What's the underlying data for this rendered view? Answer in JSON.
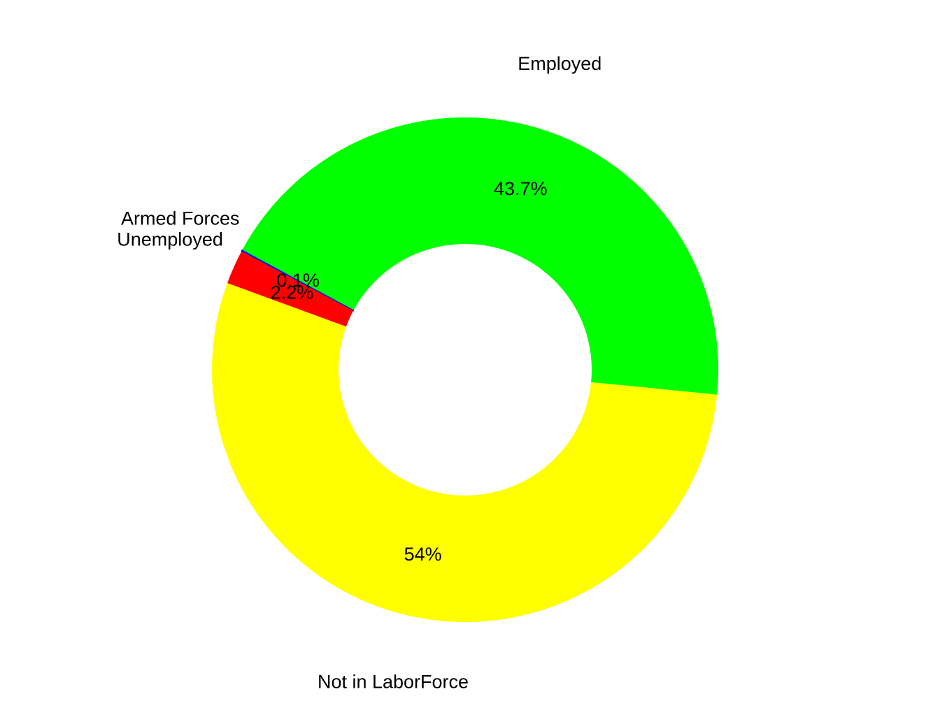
{
  "chart_data": {
    "type": "pie",
    "variant": "donut",
    "categories": [
      "Armed Forces",
      "Employed",
      "Not in LaborForce",
      "Unemployed"
    ],
    "values": [
      0.1,
      43.7,
      54.0,
      2.2
    ],
    "value_labels": [
      "0.1%",
      "43.7%",
      "54%",
      "2.2%"
    ],
    "unit": "%",
    "colors": [
      "#0000FF",
      "#00FF00",
      "#FFFF00",
      "#FF0000"
    ],
    "title": "",
    "legend": "none"
  }
}
